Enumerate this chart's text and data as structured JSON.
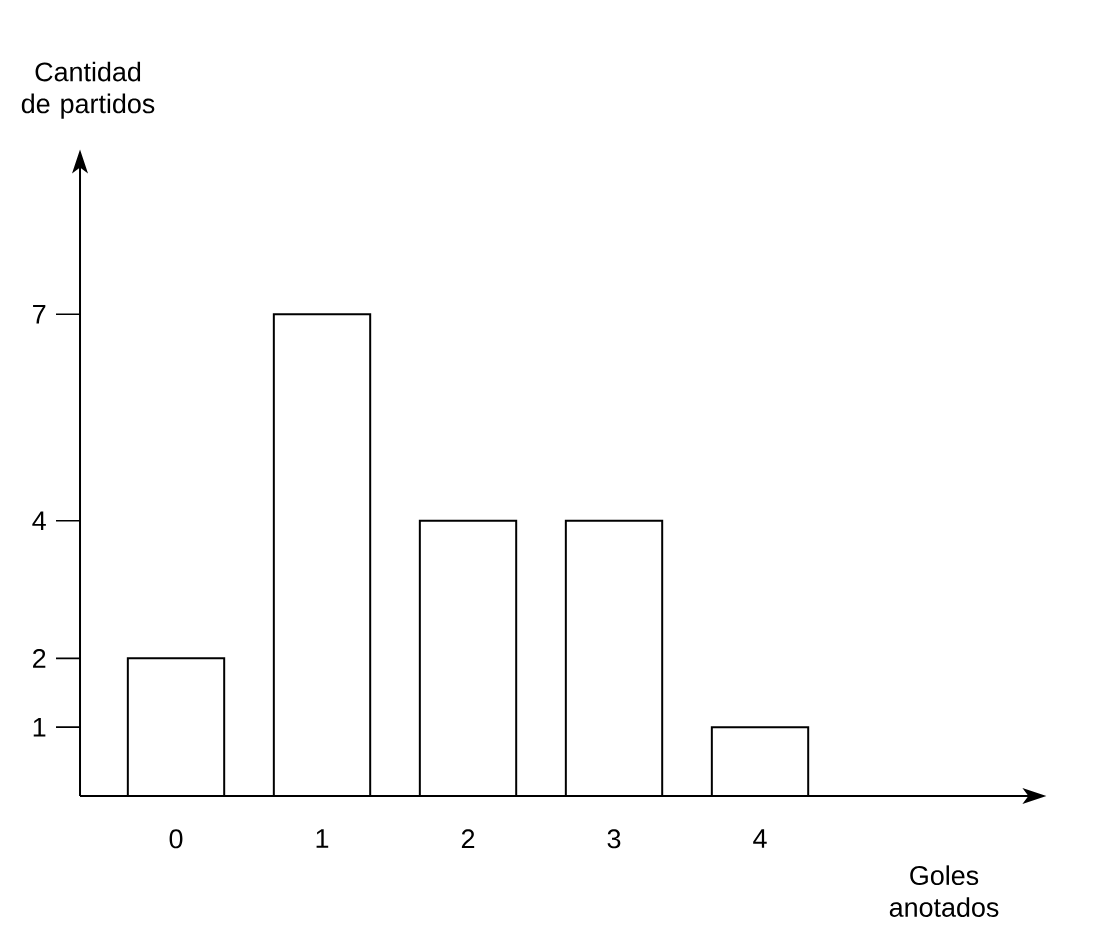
{
  "chart_data": {
    "type": "bar",
    "xlabel": "Goles anotados",
    "ylabel": "Cantidad de partidos",
    "categories": [
      "0",
      "1",
      "2",
      "3",
      "4"
    ],
    "values": [
      2,
      7,
      4,
      4,
      1
    ],
    "color": "#ffffff",
    "ylim": [
      0,
      9.3
    ],
    "yticks": [
      1,
      2,
      4,
      7
    ]
  }
}
